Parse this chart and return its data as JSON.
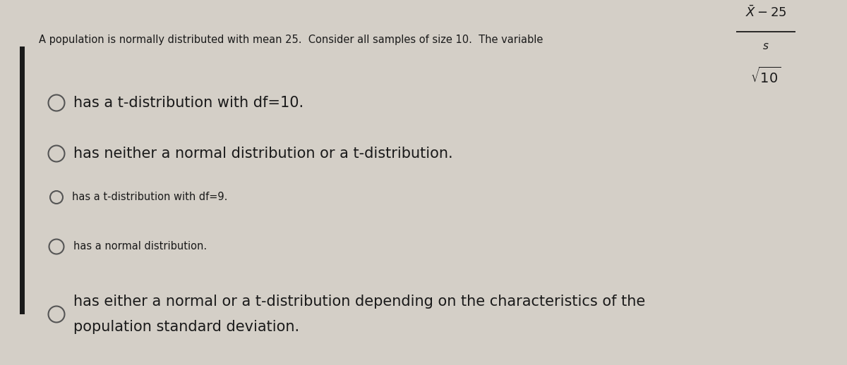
{
  "background_color": "#d4cfc7",
  "left_bar_color": "#1a1a1a",
  "question_text": "A population is normally distributed with mean 25.  Consider all samples of size 10.  The variable",
  "circle_color": "#555555",
  "text_color": "#1a1a1a",
  "figsize": [
    12,
    5.18
  ],
  "dpi": 100,
  "options": [
    {
      "text": "has a t-distribution with df=10.",
      "size": 15,
      "circle_r": 0.115,
      "small": false
    },
    {
      "text": "has neither a normal distribution or a t-distribution.",
      "size": 15,
      "circle_r": 0.115,
      "small": false
    },
    {
      "text": "has a t-distribution with df=9.",
      "size": 10.5,
      "circle_r": 0.09,
      "small": true
    },
    {
      "text": "has a normal distribution.",
      "size": 10.5,
      "circle_r": 0.105,
      "small": true
    },
    {
      "text": "has either a normal or a t-distribution depending on the characteristics of the\npopulation standard deviation.",
      "size": 15,
      "circle_r": 0.115,
      "small": false
    }
  ]
}
